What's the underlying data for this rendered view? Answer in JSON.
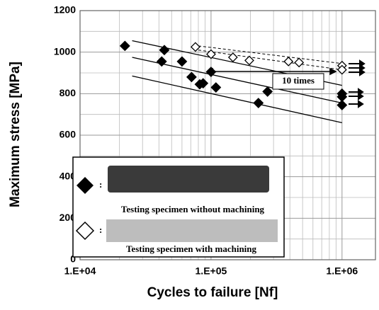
{
  "chart_data": {
    "type": "scatter",
    "xlabel": "Cycles to failure [Nf]",
    "ylabel": "Maximum stress [MPa]",
    "log_x": true,
    "grid": true,
    "xlim": [
      10000,
      1800000
    ],
    "xticks": [
      {
        "value": 10000,
        "label": "1.E+04"
      },
      {
        "value": 100000,
        "label": "1.E+05"
      },
      {
        "value": 1000000,
        "label": "1.E+06"
      }
    ],
    "xminorticks": [
      20000,
      30000,
      40000,
      50000,
      60000,
      70000,
      80000,
      90000,
      200000,
      300000,
      400000,
      500000,
      600000,
      700000,
      800000,
      900000
    ],
    "ylim": [
      0,
      1200
    ],
    "yticks": [
      0,
      200,
      400,
      600,
      800,
      1000,
      1200
    ],
    "yminorticks": [
      100,
      300,
      500,
      700,
      900,
      1100
    ],
    "series": [
      {
        "name": "Testing  specimen without machining",
        "color": "#000000",
        "marker": "filled-diamond",
        "x": [
          22000,
          44000,
          42000,
          60000,
          71000,
          82000,
          87000,
          100000,
          109000,
          230000,
          270000,
          1000000,
          1000000,
          1000000
        ],
        "values": [
          1030,
          1010,
          955,
          955,
          880,
          845,
          850,
          905,
          830,
          755,
          810,
          800,
          785,
          745
        ]
      },
      {
        "name": "Testing  specimen with machining",
        "color": "#000000",
        "marker": "open-diamond",
        "x": [
          76000,
          100000,
          147000,
          196000,
          390000,
          470000,
          1000000,
          1000000
        ],
        "values": [
          1025,
          990,
          975,
          960,
          955,
          950,
          935,
          915
        ]
      }
    ],
    "fit_lines": [
      {
        "style": "solid",
        "x": [
          25000,
          1000000
        ],
        "values": [
          1055,
          840
        ]
      },
      {
        "style": "solid",
        "x": [
          25000,
          1000000
        ],
        "values": [
          975,
          755
        ]
      },
      {
        "style": "solid",
        "x": [
          25000,
          1000000
        ],
        "values": [
          885,
          660
        ]
      },
      {
        "style": "dashed",
        "x": [
          80000,
          1000000
        ],
        "values": [
          1030,
          945
        ]
      },
      {
        "style": "dashed",
        "x": [
          80000,
          1000000
        ],
        "values": [
          1010,
          915
        ]
      }
    ],
    "annotation": "10 times",
    "legend_separator": ":"
  }
}
